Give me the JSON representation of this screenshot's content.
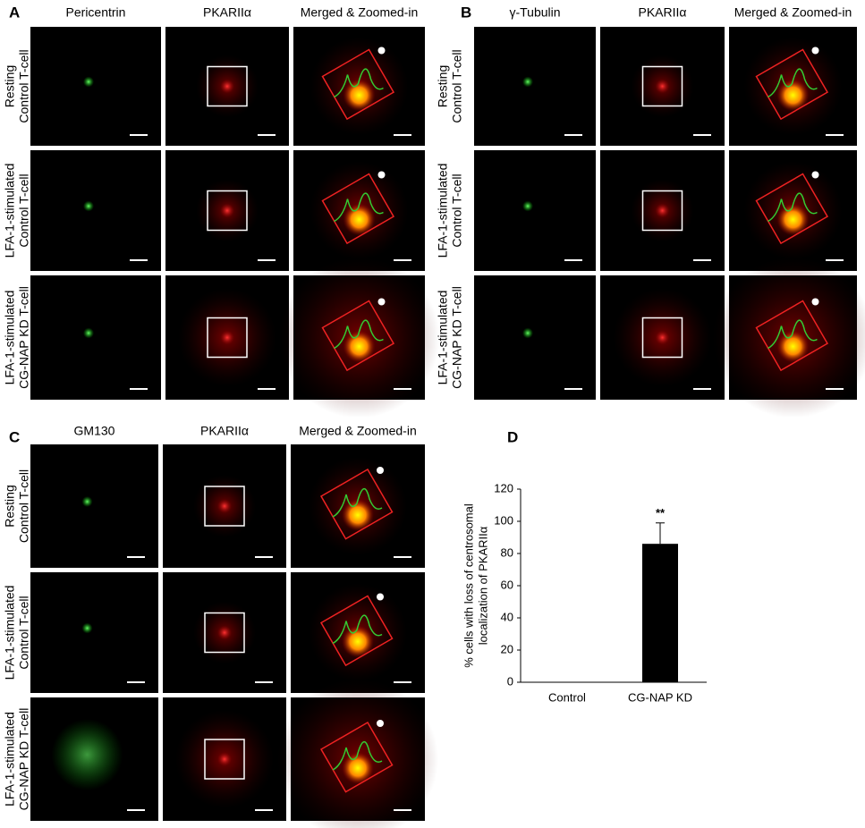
{
  "panels": [
    {
      "letter": "A",
      "columns": [
        "Pericentrin",
        "PKARIIα",
        "Merged & Zoomed-in"
      ],
      "rows": [
        [
          "Resting",
          "Control T-cell"
        ],
        [
          "LFA-1-stimulated",
          "Control T-cell"
        ],
        [
          "LFA-1-stimulated",
          "CG-NAP KD T-cell"
        ]
      ]
    },
    {
      "letter": "B",
      "columns": [
        "γ-Tubulin",
        "PKARIIα",
        "Merged & Zoomed-in"
      ],
      "rows": [
        [
          "Resting",
          "Control T-cell"
        ],
        [
          "LFA-1-stimulated",
          "Control T-cell"
        ],
        [
          "LFA-1-stimulated",
          "CG-NAP KD T-cell"
        ]
      ]
    },
    {
      "letter": "C",
      "columns": [
        "GM130",
        "PKARIIα",
        "Merged & Zoomed-in"
      ],
      "rows": [
        [
          "Resting",
          "Control T-cell"
        ],
        [
          "LFA-1-stimulated",
          "Control T-cell"
        ],
        [
          "LFA-1-stimulated",
          "CG-NAP KD T-cell"
        ]
      ]
    }
  ],
  "chart_data": {
    "type": "bar",
    "label": "D",
    "ylabel": [
      "% cells with loss of centrosomal",
      "localization of PKARIIα"
    ],
    "categories": [
      "Control",
      "CG-NAP KD"
    ],
    "values": [
      0,
      86
    ],
    "errors": [
      0,
      13
    ],
    "significance": [
      null,
      "**"
    ],
    "color": "#000000",
    "ylim": [
      0,
      120
    ],
    "yticks": [
      0,
      20,
      40,
      60,
      80,
      100,
      120
    ]
  }
}
